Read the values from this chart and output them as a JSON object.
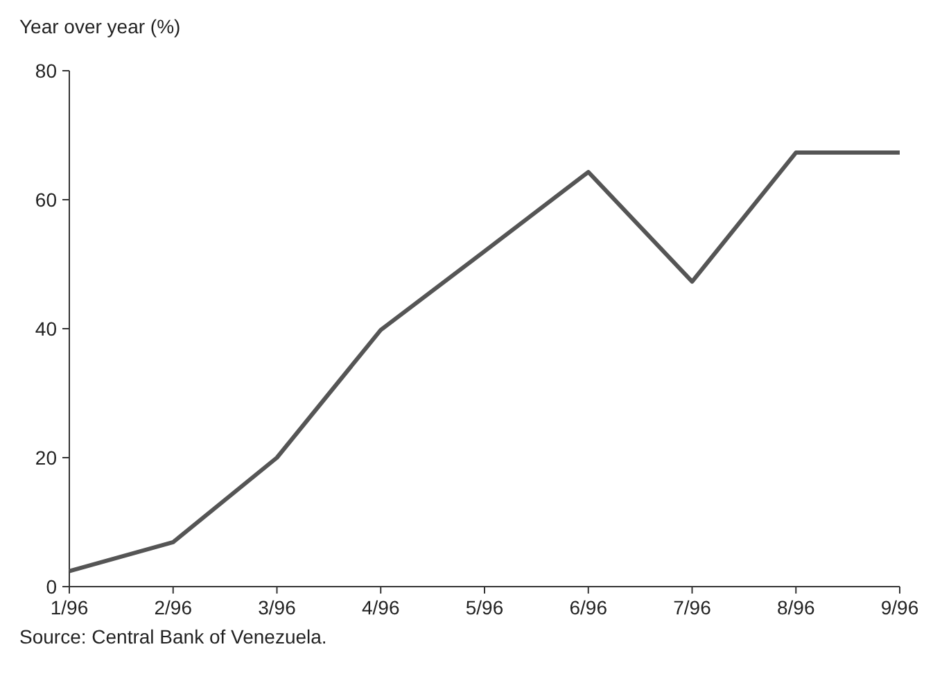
{
  "chart_data": {
    "type": "line",
    "ylabel": "Year over year (%)",
    "categories": [
      "1/96",
      "2/96",
      "3/96",
      "4/96",
      "5/96",
      "6/96",
      "7/96",
      "8/96",
      "9/96"
    ],
    "series": [
      {
        "color": "#555555",
        "values": [
          2.4,
          6.9,
          20,
          39.8,
          52,
          64.3,
          47.3,
          67.3,
          67.3
        ]
      }
    ],
    "ylim": [
      0,
      80
    ],
    "yticks": [
      0,
      20,
      40,
      60,
      80
    ],
    "annotations": [
      "Source: Central Bank of Venezuela."
    ]
  }
}
